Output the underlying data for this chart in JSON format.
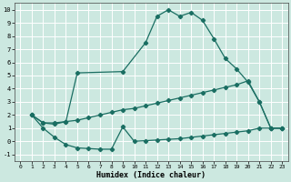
{
  "title": "",
  "xlabel": "Humidex (Indice chaleur)",
  "bg_color": "#cce8e0",
  "grid_color": "#ffffff",
  "line_color": "#1a6e62",
  "xlim": [
    -0.5,
    23.5
  ],
  "ylim": [
    -1.5,
    10.5
  ],
  "xticks": [
    0,
    1,
    2,
    3,
    4,
    5,
    6,
    7,
    8,
    9,
    10,
    11,
    12,
    13,
    14,
    15,
    16,
    17,
    18,
    19,
    20,
    21,
    22,
    23
  ],
  "yticks": [
    -1,
    0,
    1,
    2,
    3,
    4,
    5,
    6,
    7,
    8,
    9,
    10
  ],
  "line1_x": [
    1,
    2,
    3,
    4,
    5,
    6,
    7,
    8,
    9,
    10,
    11,
    12,
    13,
    14,
    15,
    16,
    17,
    18,
    19,
    20,
    21,
    22,
    23
  ],
  "line1_y": [
    2.0,
    1.0,
    0.3,
    -0.25,
    -0.5,
    -0.55,
    -0.6,
    -0.6,
    1.1,
    0.0,
    0.05,
    0.1,
    0.15,
    0.2,
    0.3,
    0.4,
    0.5,
    0.6,
    0.7,
    0.8,
    1.0,
    1.0,
    1.0
  ],
  "line2_x": [
    1,
    2,
    3,
    4,
    5,
    6,
    7,
    8,
    9,
    10,
    11,
    12,
    13,
    14,
    15,
    16,
    17,
    18,
    19,
    20,
    21,
    22,
    23
  ],
  "line2_y": [
    2.0,
    1.4,
    1.3,
    1.5,
    1.6,
    1.8,
    2.0,
    2.2,
    2.4,
    2.5,
    2.7,
    2.9,
    3.1,
    3.3,
    3.5,
    3.7,
    3.9,
    4.1,
    4.3,
    4.6,
    3.0,
    1.0,
    1.0
  ],
  "line3_x": [
    1,
    2,
    3,
    4,
    5,
    9,
    11,
    12,
    13,
    14,
    15,
    16,
    17,
    18,
    19,
    20,
    21,
    22,
    23
  ],
  "line3_y": [
    2.0,
    1.4,
    1.4,
    1.5,
    5.2,
    5.3,
    7.5,
    9.5,
    10.0,
    9.5,
    9.8,
    9.2,
    7.8,
    6.3,
    5.5,
    4.5,
    3.0,
    1.0,
    1.0
  ]
}
